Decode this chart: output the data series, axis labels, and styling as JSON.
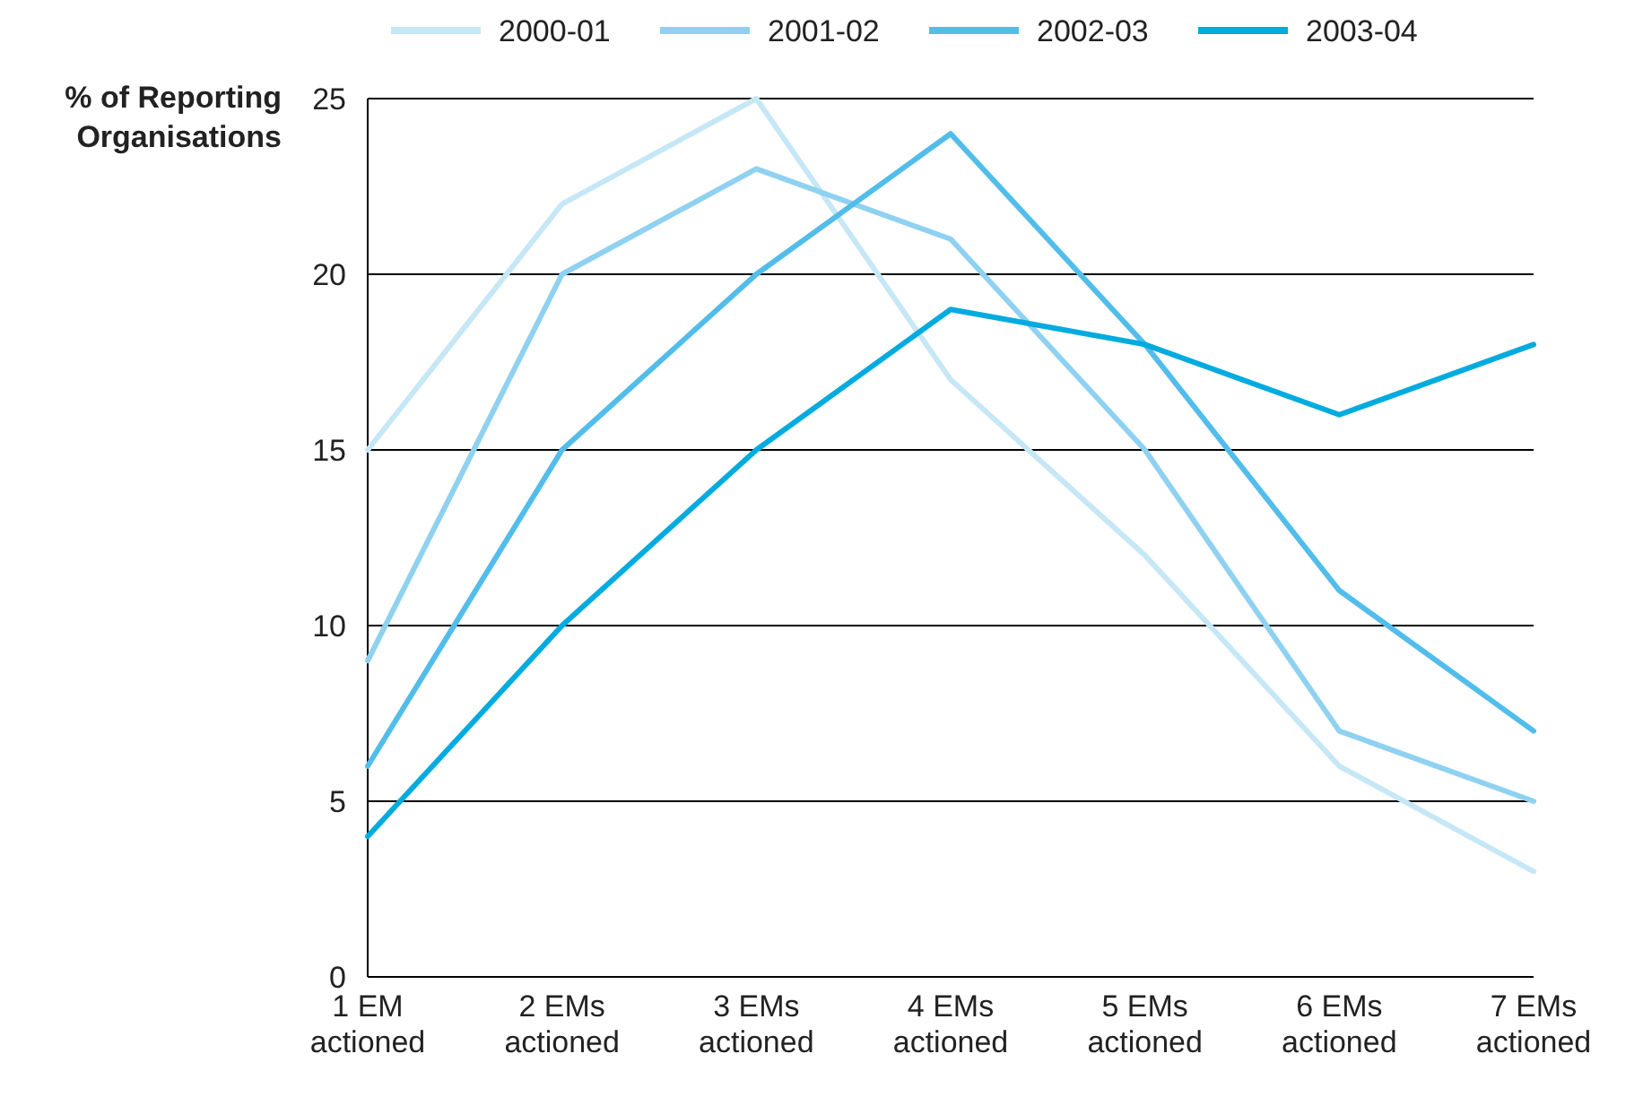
{
  "chart_data": {
    "type": "line",
    "ylabel": "% of Reporting Organisations",
    "categories": [
      "1 EM actioned",
      "2 EMs actioned",
      "3 EMs actioned",
      "4 EMs actioned",
      "5 EMs actioned",
      "6 EMs actioned",
      "7 EMs actioned"
    ],
    "series": [
      {
        "name": "2000-01",
        "color": "#c6e7f6",
        "values": [
          15,
          22,
          25,
          17,
          12,
          6,
          3
        ]
      },
      {
        "name": "2001-02",
        "color": "#8fd1f0",
        "values": [
          9,
          20,
          23,
          21,
          15,
          7,
          5
        ]
      },
      {
        "name": "2002-03",
        "color": "#52bdea",
        "values": [
          6,
          15,
          20,
          24,
          18,
          11,
          7
        ]
      },
      {
        "name": "2003-04",
        "color": "#00abdf",
        "values": [
          4,
          10,
          15,
          19,
          18,
          16,
          18
        ]
      }
    ],
    "ylim": [
      0,
      25
    ],
    "yticks": [
      0,
      5,
      10,
      15,
      20,
      25
    ],
    "grid": "y",
    "legend": "top",
    "marker": "none",
    "line_style": "solid"
  }
}
